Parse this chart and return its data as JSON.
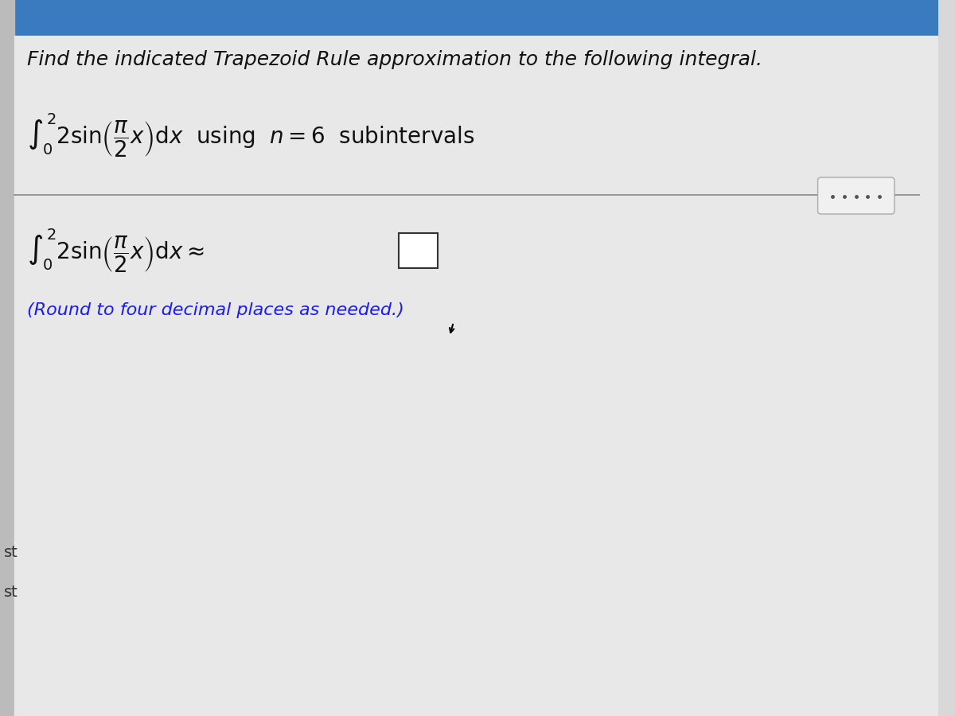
{
  "bg_color": "#d8d8d8",
  "top_bar_color": "#3a7bbf",
  "header_text": "Find the indicated Trapezoid Rule approximation to the following integral.",
  "header_fontsize": 18,
  "header_color": "#111111",
  "line1_integral": "$\\int_0^2 2\\sin\\!\\left(\\dfrac{\\pi}{2}x\\right)dx$ using $n=6$ subintervals",
  "line2_integral": "$\\int_0^2 2\\sin\\!\\left(\\dfrac{\\pi}{2}x\\right)dx \\approx$",
  "round_text": "(Round to four decimal places as needed.)",
  "round_color": "#1a1aff",
  "divider_color": "#888888",
  "dots_color": "#555555",
  "sidebar_color": "#bbbbbb",
  "text_color": "#111111",
  "small_text_left": "st",
  "small_text_left2": "st"
}
